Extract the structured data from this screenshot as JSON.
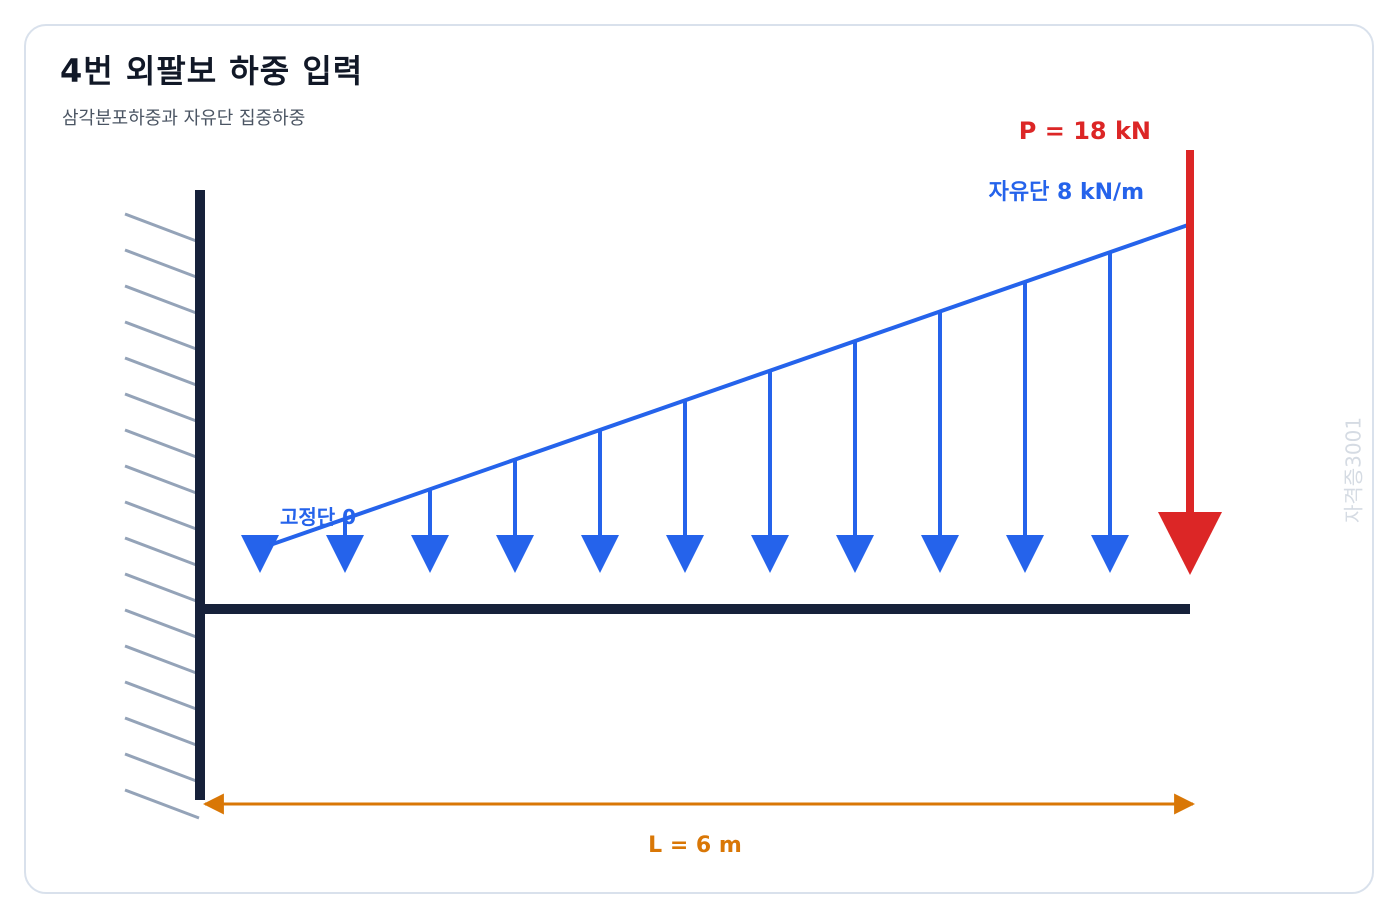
{
  "header": {
    "title": "4번 외팔보 하중 입력",
    "subtitle": "삼각분포하중과 자유단 집중하중"
  },
  "diagram": {
    "point_load_label": "P = 18 kN",
    "free_end_load_label": "자유단 8 kN/m",
    "fixed_end_load_label": "고정단 0",
    "length_label": "L = 6 m",
    "watermark": "자격증3001",
    "length_m": 6,
    "free_end_intensity_kn_per_m": 8,
    "fixed_end_intensity_kn_per_m": 0,
    "point_load_kn": 18
  },
  "colors": {
    "beam": "#16213a",
    "distributed_load": "#2563eb",
    "point_load": "#dc2626",
    "dimension": "#d97706",
    "hatch": "#94a3b8"
  }
}
